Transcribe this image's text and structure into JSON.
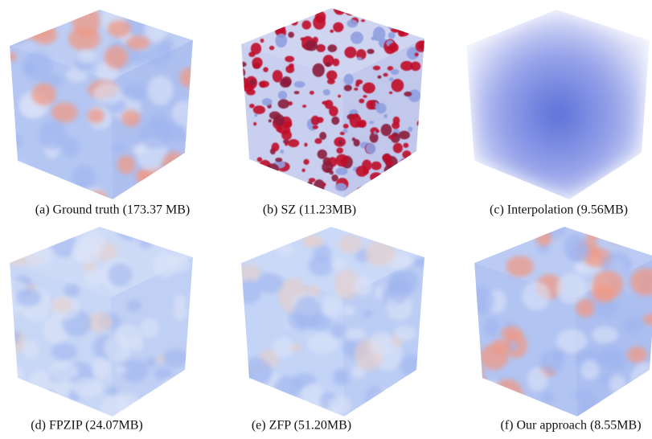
{
  "figure": {
    "panels": [
      {
        "caption": "(a) Ground truth (173.37 MB)"
      },
      {
        "caption": "(b) SZ (11.23MB)"
      },
      {
        "caption": "(c) Interpolation (9.56MB)"
      },
      {
        "caption": "(d) FPZIP (24.07MB)"
      },
      {
        "caption": "(e) ZFP (51.20MB)"
      },
      {
        "caption": "(f) Our approach (8.55MB)"
      }
    ]
  }
}
